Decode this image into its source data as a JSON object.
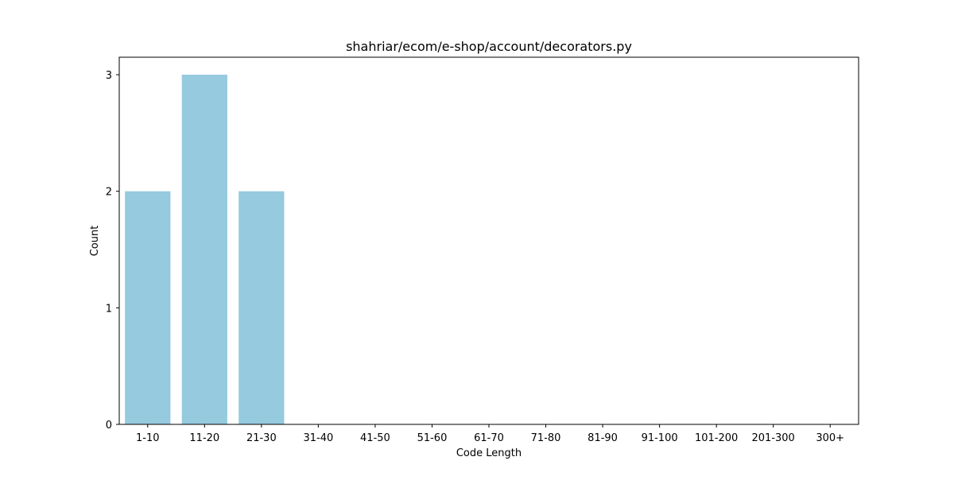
{
  "chart_data": {
    "type": "bar",
    "title": "shahriar/ecom/e-shop/account/decorators.py",
    "xlabel": "Code Length",
    "ylabel": "Count",
    "categories": [
      "1-10",
      "11-20",
      "21-30",
      "31-40",
      "41-50",
      "51-60",
      "61-70",
      "71-80",
      "81-90",
      "91-100",
      "101-200",
      "201-300",
      "300+"
    ],
    "values": [
      2,
      3,
      2,
      0,
      0,
      0,
      0,
      0,
      0,
      0,
      0,
      0,
      0
    ],
    "yticks": [
      0,
      1,
      2,
      3
    ],
    "ylim": [
      0,
      3.15
    ],
    "grid": false,
    "legend": false,
    "colors": {
      "bar": "#95cadf",
      "axis": "#000000",
      "background": "#ffffff"
    }
  }
}
